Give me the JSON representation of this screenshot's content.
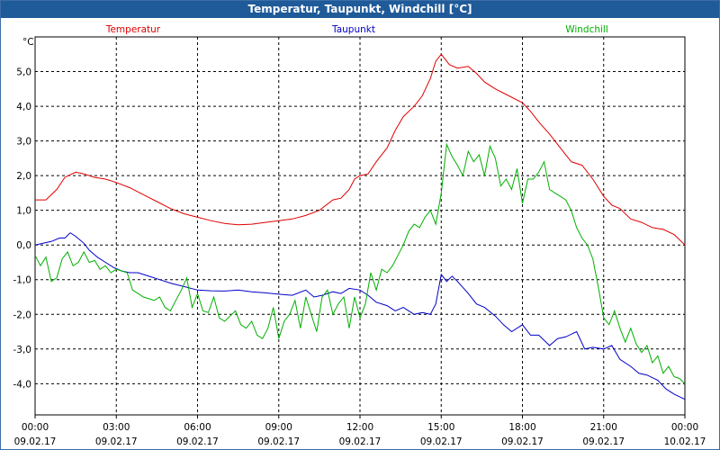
{
  "window_title": "Temperatur, Taupunkt, Windchill [°C]",
  "chart_data": {
    "type": "line",
    "title": "Temperatur, Taupunkt, Windchill [°C]",
    "ylabel": "°C",
    "ylim": [
      -4.9,
      6.0
    ],
    "xlim": [
      0,
      24
    ],
    "grid": true,
    "yticks": [
      {
        "v": 5,
        "label": "5,0"
      },
      {
        "v": 4,
        "label": "4,0"
      },
      {
        "v": 3,
        "label": "3,0"
      },
      {
        "v": 2,
        "label": "2,0"
      },
      {
        "v": 1,
        "label": "1,0"
      },
      {
        "v": 0,
        "label": "0,0"
      },
      {
        "v": -1,
        "label": "-1,0"
      },
      {
        "v": -2,
        "label": "-2,0"
      },
      {
        "v": -3,
        "label": "-3,0"
      },
      {
        "v": -4,
        "label": "-4,0"
      }
    ],
    "xticks": [
      {
        "v": 0,
        "time": "00:00",
        "date": "09.02.17"
      },
      {
        "v": 3,
        "time": "03:00",
        "date": "09.02.17"
      },
      {
        "v": 6,
        "time": "06:00",
        "date": "09.02.17"
      },
      {
        "v": 9,
        "time": "09:00",
        "date": "09.02.17"
      },
      {
        "v": 12,
        "time": "12:00",
        "date": "09.02.17"
      },
      {
        "v": 15,
        "time": "15:00",
        "date": "09.02.17"
      },
      {
        "v": 18,
        "time": "18:00",
        "date": "09.02.17"
      },
      {
        "v": 21,
        "time": "21:00",
        "date": "09.02.17"
      },
      {
        "v": 24,
        "time": "00:00",
        "date": "10.02.17"
      }
    ],
    "series": [
      {
        "name": "Temperatur",
        "color": "#e00000",
        "legend_pos": "left",
        "x": [
          0,
          0.4,
          0.8,
          1.1,
          1.5,
          1.8,
          2.2,
          2.6,
          3,
          3.5,
          4,
          4.5,
          5,
          5.5,
          6,
          6.5,
          7,
          7.5,
          8,
          8.5,
          9,
          9.5,
          10,
          10.5,
          11,
          11.3,
          11.6,
          11.8,
          12,
          12.3,
          12.6,
          13,
          13.3,
          13.6,
          14,
          14.3,
          14.6,
          14.8,
          15,
          15.3,
          15.6,
          16,
          16.3,
          16.6,
          17,
          17.5,
          18,
          18.3,
          18.6,
          19,
          19.4,
          19.8,
          20.2,
          20.6,
          21,
          21.3,
          21.6,
          22,
          22.4,
          22.8,
          23.2,
          23.6,
          24
        ],
        "y": [
          1.3,
          1.3,
          1.6,
          1.95,
          2.1,
          2.05,
          1.95,
          1.9,
          1.8,
          1.65,
          1.45,
          1.25,
          1.05,
          0.9,
          0.8,
          0.7,
          0.62,
          0.58,
          0.6,
          0.65,
          0.7,
          0.75,
          0.85,
          1.0,
          1.3,
          1.35,
          1.6,
          1.9,
          2.0,
          2.05,
          2.4,
          2.8,
          3.3,
          3.7,
          4.0,
          4.3,
          4.8,
          5.3,
          5.5,
          5.2,
          5.1,
          5.15,
          4.95,
          4.7,
          4.5,
          4.3,
          4.1,
          3.85,
          3.55,
          3.2,
          2.8,
          2.4,
          2.3,
          1.9,
          1.4,
          1.15,
          1.05,
          0.75,
          0.65,
          0.5,
          0.45,
          0.3,
          0.0
        ]
      },
      {
        "name": "Taupunkt",
        "color": "#0000c8",
        "legend_pos": "center",
        "x": [
          0,
          0.3,
          0.6,
          0.9,
          1.1,
          1.3,
          1.5,
          1.8,
          2,
          2.3,
          2.6,
          2.9,
          3.2,
          3.5,
          3.8,
          4.2,
          4.6,
          5,
          5.5,
          6,
          6.5,
          7,
          7.5,
          8,
          8.5,
          9,
          9.5,
          10,
          10.3,
          10.6,
          11,
          11.3,
          11.6,
          12,
          12.3,
          12.6,
          13,
          13.3,
          13.6,
          14,
          14.3,
          14.6,
          14.8,
          15,
          15.2,
          15.4,
          15.6,
          16,
          16.3,
          16.6,
          17,
          17.3,
          17.6,
          18,
          18.3,
          18.6,
          19,
          19.3,
          19.6,
          20,
          20.3,
          20.6,
          21,
          21.3,
          21.6,
          22,
          22.3,
          22.6,
          23,
          23.3,
          23.6,
          24
        ],
        "y": [
          0.0,
          0.05,
          0.1,
          0.2,
          0.2,
          0.35,
          0.25,
          0.05,
          -0.15,
          -0.35,
          -0.5,
          -0.65,
          -0.75,
          -0.8,
          -0.8,
          -0.9,
          -1.0,
          -1.1,
          -1.2,
          -1.3,
          -1.32,
          -1.33,
          -1.3,
          -1.35,
          -1.38,
          -1.42,
          -1.45,
          -1.3,
          -1.5,
          -1.45,
          -1.35,
          -1.4,
          -1.25,
          -1.3,
          -1.45,
          -1.65,
          -1.75,
          -1.9,
          -1.8,
          -2.0,
          -1.95,
          -2.0,
          -1.7,
          -0.85,
          -1.05,
          -0.9,
          -1.05,
          -1.4,
          -1.7,
          -1.8,
          -2.05,
          -2.3,
          -2.5,
          -2.3,
          -2.6,
          -2.6,
          -2.9,
          -2.7,
          -2.65,
          -2.5,
          -3.0,
          -2.95,
          -3.0,
          -2.9,
          -3.3,
          -3.5,
          -3.7,
          -3.75,
          -3.9,
          -4.15,
          -4.3,
          -4.45
        ]
      },
      {
        "name": "Windchill",
        "color": "#00b000",
        "legend_pos": "right",
        "x": [
          0,
          0.2,
          0.4,
          0.6,
          0.8,
          1,
          1.2,
          1.4,
          1.6,
          1.8,
          2,
          2.2,
          2.4,
          2.6,
          2.8,
          3,
          3.2,
          3.4,
          3.6,
          3.8,
          4,
          4.2,
          4.4,
          4.6,
          4.8,
          5,
          5.2,
          5.4,
          5.6,
          5.8,
          6,
          6.2,
          6.4,
          6.6,
          6.8,
          7,
          7.2,
          7.4,
          7.6,
          7.8,
          8,
          8.2,
          8.4,
          8.6,
          8.8,
          9,
          9.2,
          9.4,
          9.6,
          9.8,
          10,
          10.2,
          10.4,
          10.6,
          10.8,
          11,
          11.2,
          11.4,
          11.6,
          11.8,
          12,
          12.2,
          12.4,
          12.6,
          12.8,
          13,
          13.2,
          13.4,
          13.6,
          13.8,
          14,
          14.2,
          14.4,
          14.6,
          14.8,
          15,
          15.2,
          15.4,
          15.6,
          15.8,
          16,
          16.2,
          16.4,
          16.6,
          16.8,
          17,
          17.2,
          17.4,
          17.6,
          17.8,
          18,
          18.2,
          18.4,
          18.6,
          18.8,
          19,
          19.2,
          19.4,
          19.6,
          19.8,
          20,
          20.2,
          20.4,
          20.6,
          20.8,
          21,
          21.2,
          21.4,
          21.6,
          21.8,
          22,
          22.2,
          22.4,
          22.6,
          22.8,
          23,
          23.2,
          23.4,
          23.6,
          23.8,
          24
        ],
        "y": [
          -0.3,
          -0.6,
          -0.35,
          -1.05,
          -0.95,
          -0.4,
          -0.2,
          -0.6,
          -0.5,
          -0.2,
          -0.5,
          -0.45,
          -0.7,
          -0.6,
          -0.8,
          -0.7,
          -0.75,
          -0.8,
          -1.3,
          -1.4,
          -1.5,
          -1.55,
          -1.6,
          -1.5,
          -1.8,
          -1.9,
          -1.6,
          -1.3,
          -0.95,
          -1.8,
          -1.4,
          -1.9,
          -1.95,
          -1.5,
          -2.1,
          -2.2,
          -2.05,
          -1.9,
          -2.3,
          -2.4,
          -2.2,
          -2.6,
          -2.7,
          -2.4,
          -1.8,
          -2.7,
          -2.2,
          -2.0,
          -1.6,
          -2.4,
          -1.5,
          -2.0,
          -2.5,
          -1.5,
          -1.3,
          -2.0,
          -1.7,
          -1.5,
          -2.4,
          -1.5,
          -2.1,
          -1.7,
          -0.8,
          -1.3,
          -0.7,
          -0.8,
          -0.6,
          -0.3,
          0.0,
          0.4,
          0.6,
          0.5,
          0.8,
          1.0,
          0.6,
          1.5,
          2.9,
          2.55,
          2.3,
          2.0,
          2.7,
          2.4,
          2.6,
          2.0,
          2.85,
          2.5,
          1.7,
          1.9,
          1.6,
          2.2,
          1.2,
          1.9,
          1.9,
          2.1,
          2.4,
          1.6,
          1.5,
          1.4,
          1.3,
          1.0,
          0.5,
          0.2,
          0.0,
          -0.4,
          -1.2,
          -2.1,
          -2.3,
          -1.9,
          -2.4,
          -2.8,
          -2.4,
          -2.85,
          -3.1,
          -2.9,
          -3.4,
          -3.2,
          -3.7,
          -3.5,
          -3.8,
          -3.85,
          -4.0
        ]
      }
    ]
  }
}
